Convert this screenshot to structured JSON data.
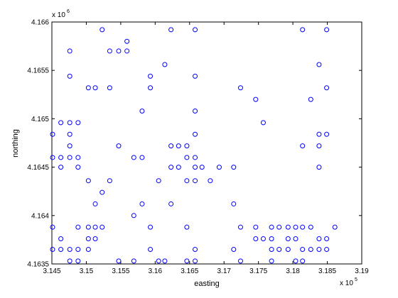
{
  "chart_data": {
    "type": "scatter",
    "title": "",
    "xlabel": "easting",
    "ylabel": "northing",
    "x_scale_label": "x 10",
    "x_scale_exponent": "5",
    "y_scale_label": "x 10",
    "y_scale_exponent": "6",
    "xlim": [
      314500,
      319000
    ],
    "ylim": [
      4163500,
      4166000
    ],
    "x_ticks": [
      {
        "value": 314500,
        "label": "3.145"
      },
      {
        "value": 315000,
        "label": "3.15"
      },
      {
        "value": 315500,
        "label": "3.155"
      },
      {
        "value": 316000,
        "label": "3.16"
      },
      {
        "value": 316500,
        "label": "3.165"
      },
      {
        "value": 317000,
        "label": "3.17"
      },
      {
        "value": 317500,
        "label": "3.175"
      },
      {
        "value": 318000,
        "label": "3.18"
      },
      {
        "value": 318500,
        "label": "3.185"
      },
      {
        "value": 319000,
        "label": "3.19"
      }
    ],
    "y_ticks": [
      {
        "value": 4163500,
        "label": "4.1635"
      },
      {
        "value": 4164000,
        "label": "4.164"
      },
      {
        "value": 4164500,
        "label": "4.1645"
      },
      {
        "value": 4165000,
        "label": "4.165"
      },
      {
        "value": 4165500,
        "label": "4.1655"
      },
      {
        "value": 4166000,
        "label": "4.166"
      }
    ],
    "grid": false,
    "marker": "open-circle",
    "marker_color": "#0000ff",
    "points": [
      [
        314510,
        4164840
      ],
      [
        314510,
        4164600
      ],
      [
        314510,
        4163880
      ],
      [
        314510,
        4163650
      ],
      [
        314630,
        4164960
      ],
      [
        314630,
        4164600
      ],
      [
        314630,
        4164500
      ],
      [
        314630,
        4163760
      ],
      [
        314630,
        4163650
      ],
      [
        314760,
        4165700
      ],
      [
        314760,
        4165440
      ],
      [
        314760,
        4164960
      ],
      [
        314760,
        4164840
      ],
      [
        314760,
        4164720
      ],
      [
        314760,
        4164600
      ],
      [
        314760,
        4163650
      ],
      [
        314760,
        4163530
      ],
      [
        314880,
        4164960
      ],
      [
        314880,
        4164600
      ],
      [
        314880,
        4164500
      ],
      [
        314880,
        4163880
      ],
      [
        314880,
        4163650
      ],
      [
        314880,
        4163530
      ],
      [
        315030,
        4165320
      ],
      [
        315030,
        4164360
      ],
      [
        315030,
        4163880
      ],
      [
        315030,
        4163760
      ],
      [
        315030,
        4163650
      ],
      [
        315130,
        4165320
      ],
      [
        315130,
        4164120
      ],
      [
        315130,
        4163880
      ],
      [
        315130,
        4163760
      ],
      [
        315230,
        4165920
      ],
      [
        315230,
        4164240
      ],
      [
        315230,
        4163880
      ],
      [
        315340,
        4165700
      ],
      [
        315340,
        4165320
      ],
      [
        315340,
        4164360
      ],
      [
        315470,
        4165700
      ],
      [
        315470,
        4164720
      ],
      [
        315470,
        4163530
      ],
      [
        315590,
        4165800
      ],
      [
        315590,
        4165700
      ],
      [
        315690,
        4164600
      ],
      [
        315690,
        4164000
      ],
      [
        315690,
        4163530
      ],
      [
        315810,
        4165080
      ],
      [
        315810,
        4164600
      ],
      [
        315810,
        4164120
      ],
      [
        315930,
        4165440
      ],
      [
        315930,
        4165320
      ],
      [
        315930,
        4163880
      ],
      [
        315930,
        4163650
      ],
      [
        316050,
        4164360
      ],
      [
        316050,
        4163530
      ],
      [
        316140,
        4165560
      ],
      [
        316140,
        4163530
      ],
      [
        316230,
        4165920
      ],
      [
        316230,
        4164720
      ],
      [
        316230,
        4164500
      ],
      [
        316230,
        4164120
      ],
      [
        316340,
        4164720
      ],
      [
        316340,
        4164500
      ],
      [
        316460,
        4164720
      ],
      [
        316460,
        4164600
      ],
      [
        316460,
        4164360
      ],
      [
        316460,
        4163880
      ],
      [
        316460,
        4163530
      ],
      [
        316580,
        4165920
      ],
      [
        316580,
        4165440
      ],
      [
        316580,
        4165080
      ],
      [
        316580,
        4164840
      ],
      [
        316580,
        4164600
      ],
      [
        316580,
        4164500
      ],
      [
        316580,
        4164360
      ],
      [
        316580,
        4163650
      ],
      [
        316580,
        4163530
      ],
      [
        316680,
        4164500
      ],
      [
        316800,
        4164360
      ],
      [
        316930,
        4164500
      ],
      [
        317140,
        4164500
      ],
      [
        317140,
        4164120
      ],
      [
        317140,
        4163650
      ],
      [
        317240,
        4165320
      ],
      [
        317240,
        4163880
      ],
      [
        317240,
        4163530
      ],
      [
        317460,
        4165200
      ],
      [
        317460,
        4163880
      ],
      [
        317460,
        4163760
      ],
      [
        317570,
        4164960
      ],
      [
        317570,
        4163760
      ],
      [
        317690,
        4163880
      ],
      [
        317690,
        4163760
      ],
      [
        317690,
        4163650
      ],
      [
        317690,
        4163530
      ],
      [
        317800,
        4163880
      ],
      [
        317800,
        4163650
      ],
      [
        317930,
        4163880
      ],
      [
        317930,
        4163760
      ],
      [
        317930,
        4163650
      ],
      [
        318040,
        4163880
      ],
      [
        318040,
        4163760
      ],
      [
        318040,
        4163530
      ],
      [
        318140,
        4165920
      ],
      [
        318140,
        4164720
      ],
      [
        318140,
        4163880
      ],
      [
        318140,
        4163650
      ],
      [
        318140,
        4163530
      ],
      [
        318260,
        4165200
      ],
      [
        318260,
        4163880
      ],
      [
        318260,
        4163650
      ],
      [
        318380,
        4165560
      ],
      [
        318380,
        4164840
      ],
      [
        318380,
        4164720
      ],
      [
        318380,
        4164500
      ],
      [
        318380,
        4163760
      ],
      [
        318380,
        4163650
      ],
      [
        318490,
        4165920
      ],
      [
        318490,
        4165320
      ],
      [
        318490,
        4164840
      ],
      [
        318490,
        4163760
      ],
      [
        318490,
        4163650
      ],
      [
        318610,
        4163880
      ]
    ]
  }
}
